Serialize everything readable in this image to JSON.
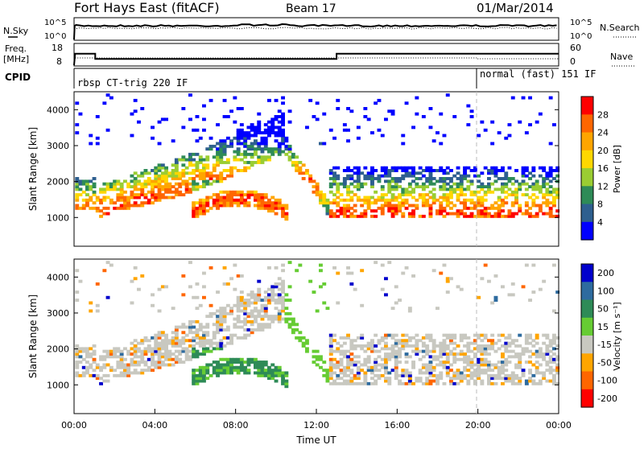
{
  "header": {
    "station": "Fort Hays East (fitACF)",
    "beam": "Beam 17",
    "date": "01/Mar/2014"
  },
  "top_panels": {
    "nsky": {
      "label": "N.Sky",
      "ticks": [
        "10^5",
        "10^0"
      ],
      "right_ticks": [
        "10^5",
        "10^0"
      ],
      "right_label": "N.Search"
    },
    "freq": {
      "label_line1": "Freq.",
      "label_line2": "[MHz]",
      "ticks": [
        "18",
        "8"
      ],
      "right_ticks": [
        "60",
        "0"
      ],
      "right_label": "Nave"
    },
    "cpid": {
      "label": "CPID",
      "mode1": "rbsp CT-trig 220 IF",
      "mode2": "normal (fast) 151 IF",
      "mode2_start_hour": 20.0
    }
  },
  "colors": {
    "line": "#000000",
    "grid_dash": "#bbbbbb"
  },
  "chart_data": [
    {
      "type": "line",
      "panel": "frequency",
      "x": [
        0,
        0.05,
        1.05,
        1.05,
        13.0,
        13.0,
        24.0
      ],
      "series": [
        {
          "name": "Freq",
          "values": [
            8,
            13.5,
            13.5,
            11,
            11,
            13.5,
            13.5
          ]
        },
        {
          "name": "Nave",
          "values": [
            30,
            30,
            30,
            30,
            30,
            30,
            30
          ]
        }
      ],
      "ylim": [
        8,
        18
      ]
    },
    {
      "type": "heatmap",
      "panel": "power",
      "ylabel": "Slant Range [km]",
      "xlim": [
        0,
        24
      ],
      "ylim": [
        200,
        4500
      ],
      "yticks": [
        1000,
        2000,
        3000,
        4000
      ],
      "colorbar": {
        "label": "Power [dB]",
        "ticks": [
          28,
          24,
          20,
          16,
          12,
          8,
          4
        ],
        "colors": [
          "#ff0000",
          "#ff6600",
          "#ffa500",
          "#ffd700",
          "#9acd32",
          "#2e8b57",
          "#2e5f8f",
          "#0000ff"
        ]
      }
    },
    {
      "type": "heatmap",
      "panel": "velocity",
      "ylabel": "Slant Range [km]",
      "xlabel": "Time UT",
      "xlim": [
        0,
        24
      ],
      "ylim": [
        200,
        4500
      ],
      "xticks": [
        "00:00",
        "04:00",
        "08:00",
        "12:00",
        "16:00",
        "20:00",
        "00:00"
      ],
      "yticks": [
        1000,
        2000,
        3000,
        4000
      ],
      "colorbar": {
        "label": "Velocity [m s⁻¹]",
        "ticks": [
          200,
          100,
          50,
          15,
          -15,
          -50,
          -100,
          -200
        ],
        "colors": [
          "#0000cc",
          "#2e6b9f",
          "#2e8b57",
          "#66cc33",
          "#c8c8c0",
          "#ffa500",
          "#ff6600",
          "#ff0000"
        ]
      }
    }
  ]
}
